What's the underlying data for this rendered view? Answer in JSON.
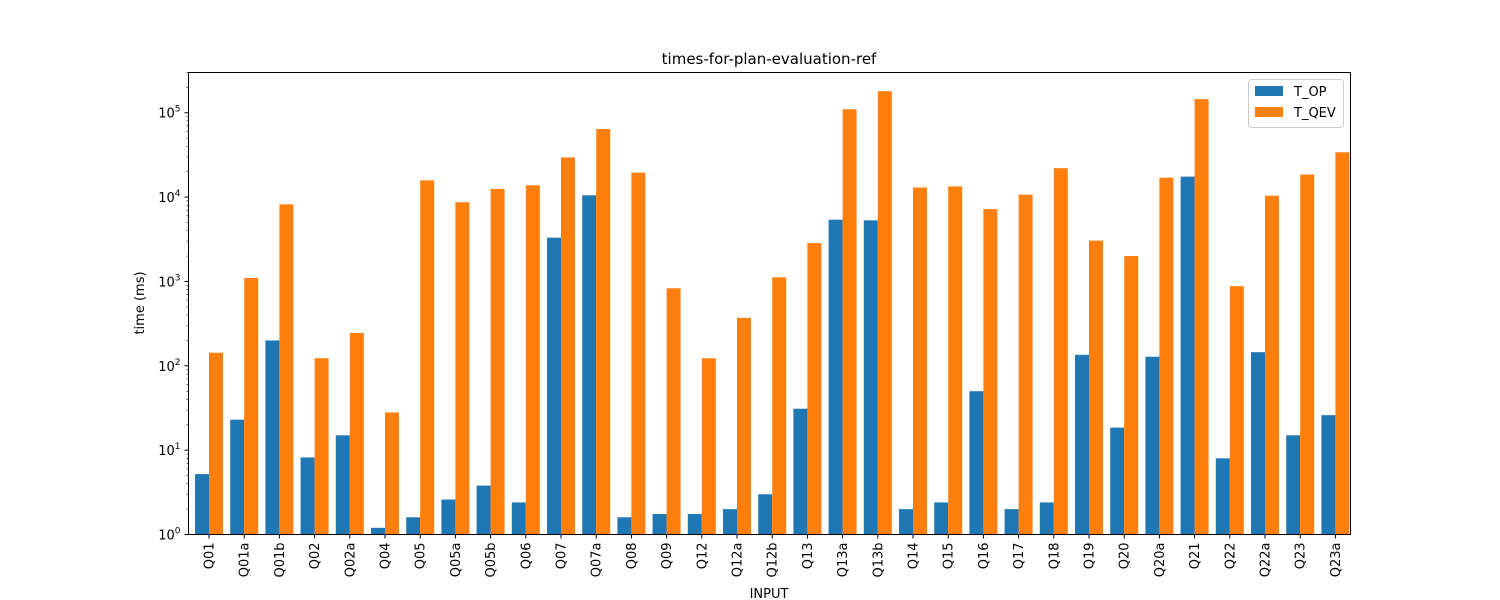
{
  "chart_data": {
    "type": "bar",
    "title": "times-for-plan-evaluation-ref",
    "xlabel": "INPUT",
    "ylabel": "time (ms)",
    "yscale": "log",
    "ylim": [
      1,
      300000
    ],
    "y_ticks": [
      {
        "value": 1,
        "base": "10",
        "exp": "0"
      },
      {
        "value": 10,
        "base": "10",
        "exp": "1"
      },
      {
        "value": 100,
        "base": "10",
        "exp": "2"
      },
      {
        "value": 1000,
        "base": "10",
        "exp": "3"
      },
      {
        "value": 10000,
        "base": "10",
        "exp": "4"
      },
      {
        "value": 100000,
        "base": "10",
        "exp": "5"
      }
    ],
    "grid": false,
    "legend_position": "top-right",
    "categories": [
      "Q01",
      "Q01a",
      "Q01b",
      "Q02",
      "Q02a",
      "Q04",
      "Q05",
      "Q05a",
      "Q05b",
      "Q06",
      "Q07",
      "Q07a",
      "Q08",
      "Q09",
      "Q12",
      "Q12a",
      "Q12b",
      "Q13",
      "Q13a",
      "Q13b",
      "Q14",
      "Q15",
      "Q16",
      "Q17",
      "Q18",
      "Q19",
      "Q20",
      "Q20a",
      "Q21",
      "Q22",
      "Q22a",
      "Q23",
      "Q23a"
    ],
    "series": [
      {
        "name": "T_OP",
        "color": "#1f77b4",
        "values": [
          5.2,
          23,
          200,
          8.2,
          15,
          1.2,
          1.6,
          2.6,
          3.8,
          2.4,
          3300,
          10500,
          1.6,
          1.75,
          1.75,
          2.0,
          3.0,
          31,
          5400,
          5300,
          2.0,
          2.4,
          50,
          2.0,
          2.4,
          135,
          18.5,
          128,
          17500,
          8.0,
          145,
          15,
          26
        ]
      },
      {
        "name": "T_QEV",
        "color": "#ff7f0e",
        "values": [
          143,
          1100,
          8200,
          123,
          245,
          28,
          15800,
          8700,
          12500,
          13800,
          29500,
          64000,
          19500,
          830,
          123,
          370,
          1120,
          2850,
          110000,
          180000,
          13000,
          13400,
          7200,
          10700,
          22000,
          3050,
          2000,
          17000,
          145000,
          880,
          10400,
          18500,
          34000
        ]
      }
    ]
  }
}
